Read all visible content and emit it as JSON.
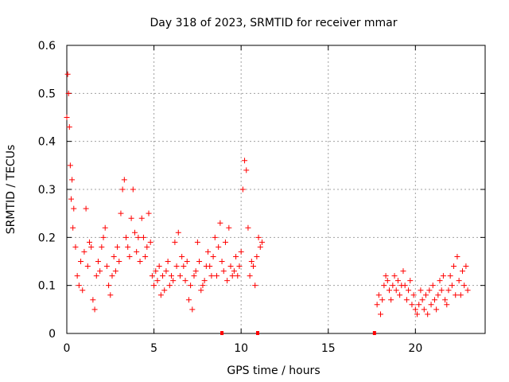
{
  "chart_data": {
    "type": "scatter",
    "title": "Day 318 of 2023, SRMTID for receiver mmar",
    "xlabel": "GPS time / hours",
    "ylabel": "SRMTID / TECUs",
    "xlim": [
      0,
      24
    ],
    "ylim": [
      0,
      0.6
    ],
    "x_ticks": [
      0,
      5,
      10,
      15,
      20
    ],
    "y_ticks": [
      0,
      0.1,
      0.2,
      0.3,
      0.4,
      0.5,
      0.6
    ],
    "x_tick_labels": [
      "0",
      "5",
      "10",
      "15",
      "20"
    ],
    "y_tick_labels": [
      "0",
      "0.1",
      "0.2",
      "0.3",
      "0.4",
      "0.5",
      "0.6"
    ],
    "grid": true,
    "marker": "plus",
    "series": [
      {
        "name": "SRMTID",
        "color": "#ff0000",
        "x": [
          0.0,
          0.05,
          0.1,
          0.15,
          0.2,
          0.25,
          0.3,
          0.35,
          0.4,
          0.5,
          0.6,
          0.7,
          0.8,
          0.9,
          1.0,
          1.1,
          1.2,
          1.3,
          1.4,
          1.5,
          1.6,
          1.7,
          1.8,
          1.9,
          2.0,
          2.1,
          2.2,
          2.3,
          2.4,
          2.5,
          2.6,
          2.7,
          2.8,
          2.9,
          3.0,
          3.1,
          3.2,
          3.3,
          3.4,
          3.5,
          3.6,
          3.7,
          3.8,
          3.9,
          4.0,
          4.1,
          4.2,
          4.3,
          4.4,
          4.5,
          4.6,
          4.7,
          4.8,
          4.9,
          5.0,
          5.1,
          5.2,
          5.3,
          5.4,
          5.5,
          5.6,
          5.7,
          5.8,
          5.9,
          6.0,
          6.1,
          6.2,
          6.3,
          6.4,
          6.5,
          6.6,
          6.7,
          6.8,
          6.9,
          7.0,
          7.1,
          7.2,
          7.3,
          7.4,
          7.5,
          7.6,
          7.7,
          7.8,
          7.9,
          8.0,
          8.1,
          8.2,
          8.3,
          8.4,
          8.5,
          8.6,
          8.7,
          8.8,
          8.9,
          9.0,
          9.1,
          9.2,
          9.3,
          9.4,
          9.5,
          9.6,
          9.7,
          9.8,
          9.9,
          10.0,
          10.1,
          10.2,
          10.3,
          10.4,
          10.5,
          10.6,
          10.7,
          10.8,
          10.9,
          11.0,
          11.1,
          11.2,
          17.8,
          17.9,
          18.0,
          18.1,
          18.2,
          18.3,
          18.4,
          18.5,
          18.6,
          18.7,
          18.8,
          18.9,
          19.0,
          19.1,
          19.2,
          19.3,
          19.4,
          19.5,
          19.6,
          19.7,
          19.8,
          19.9,
          20.0,
          20.1,
          20.2,
          20.3,
          20.4,
          20.5,
          20.6,
          20.7,
          20.8,
          20.9,
          21.0,
          21.1,
          21.2,
          21.3,
          21.4,
          21.5,
          21.6,
          21.7,
          21.8,
          21.9,
          22.0,
          22.1,
          22.2,
          22.3,
          22.4,
          22.5,
          22.6,
          22.7,
          22.8,
          22.9,
          23.0
        ],
        "y": [
          0.45,
          0.54,
          0.5,
          0.43,
          0.35,
          0.28,
          0.32,
          0.22,
          0.26,
          0.18,
          0.12,
          0.1,
          0.15,
          0.09,
          0.17,
          0.26,
          0.14,
          0.19,
          0.18,
          0.07,
          0.05,
          0.12,
          0.15,
          0.13,
          0.18,
          0.2,
          0.22,
          0.14,
          0.1,
          0.08,
          0.12,
          0.16,
          0.13,
          0.18,
          0.15,
          0.25,
          0.3,
          0.32,
          0.2,
          0.18,
          0.16,
          0.24,
          0.3,
          0.21,
          0.17,
          0.2,
          0.15,
          0.24,
          0.2,
          0.16,
          0.18,
          0.25,
          0.19,
          0.12,
          0.1,
          0.13,
          0.11,
          0.14,
          0.08,
          0.12,
          0.09,
          0.13,
          0.15,
          0.1,
          0.12,
          0.11,
          0.19,
          0.14,
          0.21,
          0.12,
          0.16,
          0.14,
          0.11,
          0.15,
          0.07,
          0.1,
          0.05,
          0.12,
          0.13,
          0.19,
          0.15,
          0.09,
          0.1,
          0.11,
          0.14,
          0.17,
          0.14,
          0.12,
          0.16,
          0.2,
          0.12,
          0.18,
          0.23,
          0.15,
          0.13,
          0.19,
          0.11,
          0.22,
          0.14,
          0.12,
          0.13,
          0.16,
          0.12,
          0.14,
          0.17,
          0.3,
          0.36,
          0.34,
          0.22,
          0.12,
          0.15,
          0.14,
          0.1,
          0.16,
          0.2,
          0.18,
          0.19,
          0.06,
          0.08,
          0.04,
          0.07,
          0.1,
          0.12,
          0.11,
          0.09,
          0.07,
          0.1,
          0.12,
          0.09,
          0.11,
          0.08,
          0.1,
          0.13,
          0.1,
          0.07,
          0.09,
          0.11,
          0.06,
          0.08,
          0.05,
          0.04,
          0.06,
          0.09,
          0.07,
          0.05,
          0.08,
          0.04,
          0.09,
          0.06,
          0.1,
          0.07,
          0.05,
          0.08,
          0.11,
          0.09,
          0.12,
          0.07,
          0.06,
          0.09,
          0.12,
          0.1,
          0.14,
          0.08,
          0.16,
          0.11,
          0.08,
          0.13,
          0.1,
          0.14,
          0.09
        ]
      }
    ],
    "gap_markers_x": [
      8.9,
      10.95,
      17.65
    ]
  }
}
